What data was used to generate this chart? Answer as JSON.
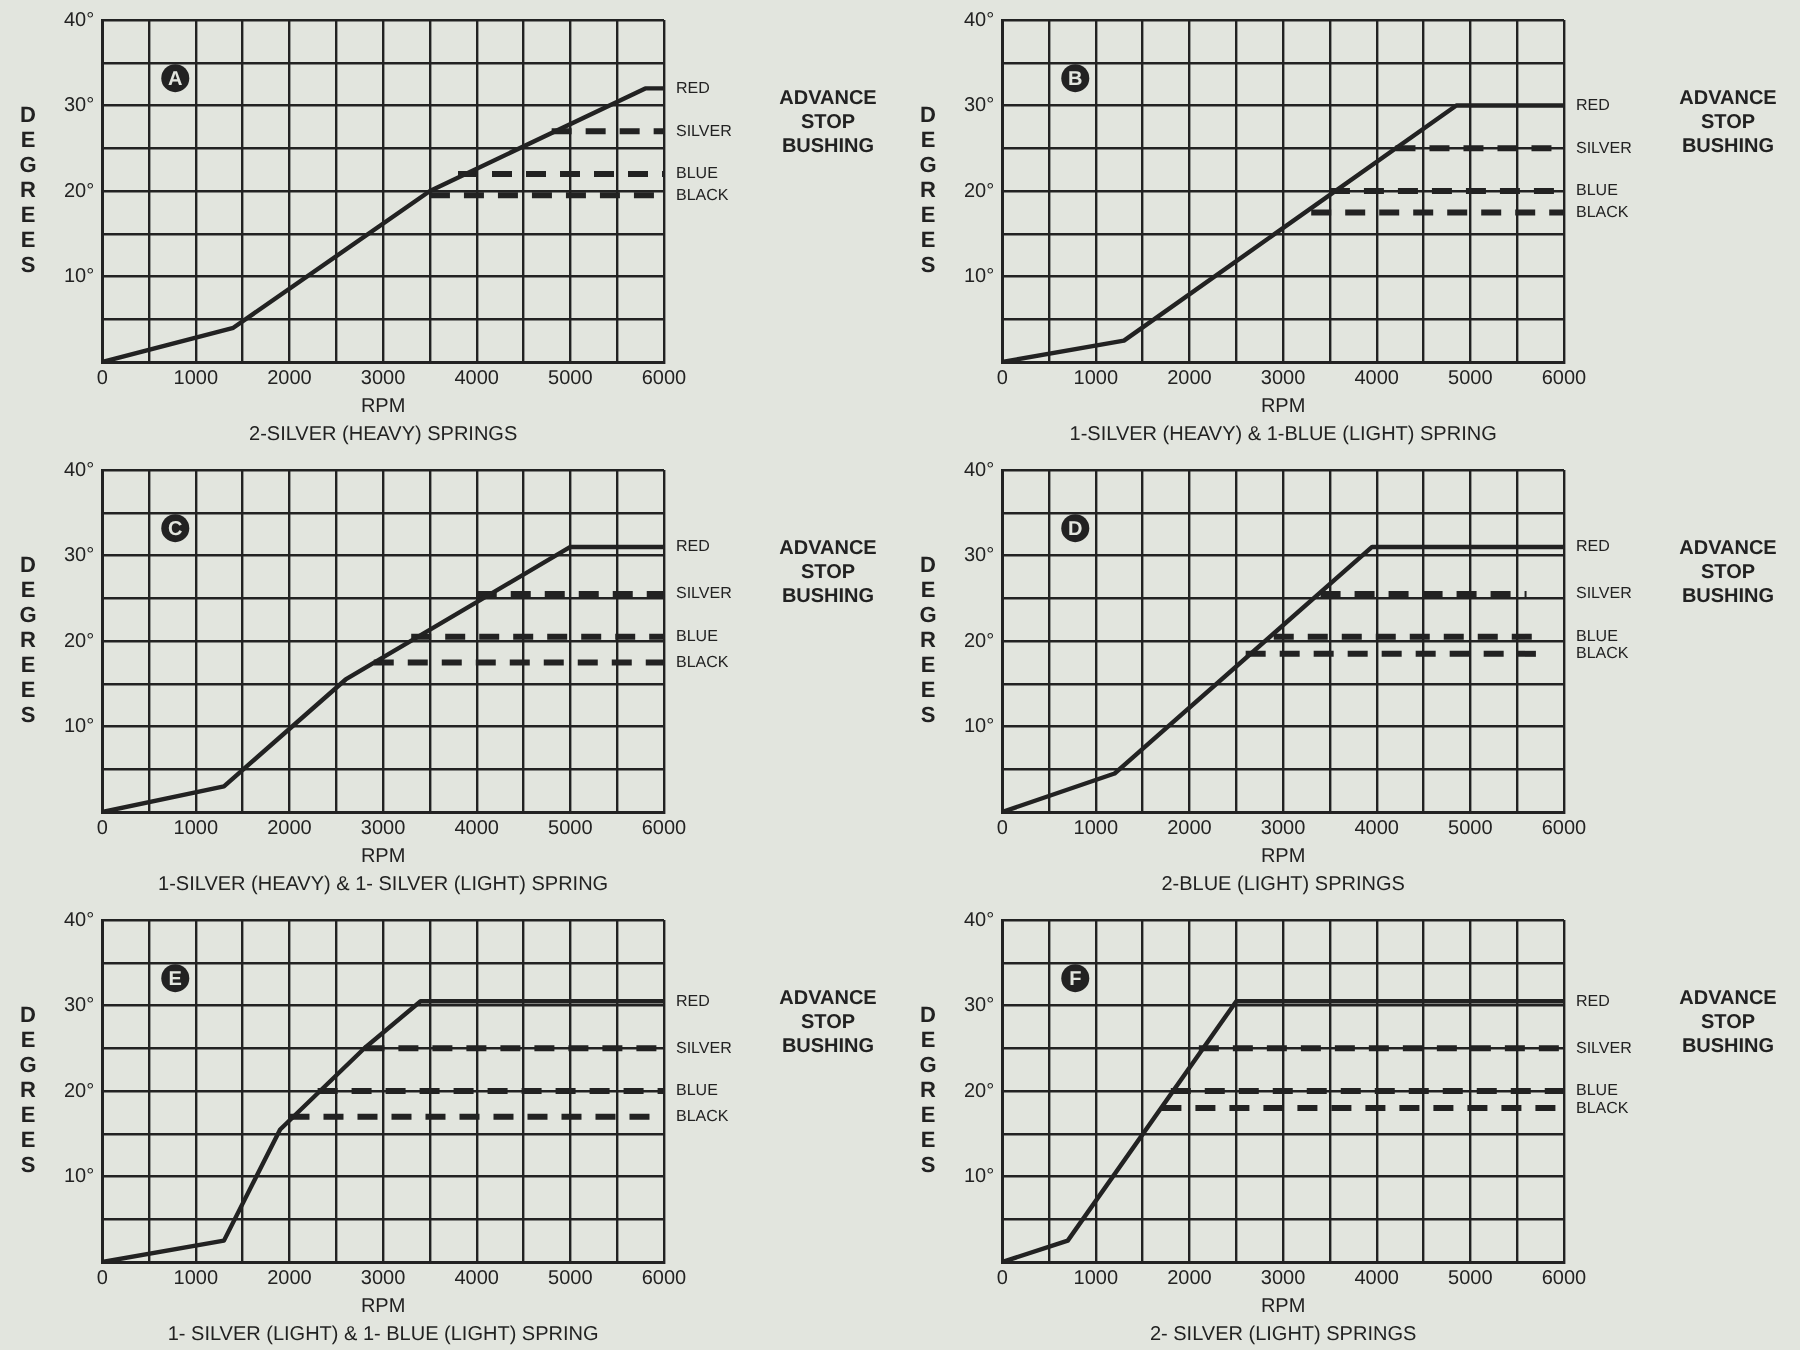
{
  "chart_data": [
    {
      "type": "line",
      "title": "A",
      "xlabel": "RPM",
      "ylabel": "DEGREES",
      "grid": true,
      "marker": "none",
      "xlim": [
        0,
        6000
      ],
      "ylim": [
        0,
        40
      ],
      "xticks": [
        0,
        {
          "value": 500,
          "label": null
        },
        1000,
        {
          "value": 1500,
          "label": null
        },
        2000,
        {
          "value": 2500,
          "label": null
        },
        3000,
        {
          "value": 3500,
          "label": null
        },
        4000,
        {
          "value": 4500,
          "label": null
        },
        5000,
        {
          "value": 5500,
          "label": null
        },
        6000
      ],
      "yticks": [
        {
          "value": 0,
          "label": null
        },
        {
          "value": 5,
          "label": null
        },
        {
          "value": 10,
          "label": "10°"
        },
        {
          "value": 15,
          "label": null
        },
        {
          "value": 20,
          "label": "20°"
        },
        {
          "value": 25,
          "label": null
        },
        {
          "value": 30,
          "label": "30°"
        },
        {
          "value": 35,
          "label": null
        },
        {
          "value": 40,
          "label": "40°"
        }
      ],
      "series": [
        {
          "name": "RED",
          "color": "#222222",
          "line_style": "solid",
          "x": [
            0,
            1400,
            3500,
            5800,
            6000
          ],
          "values": [
            0,
            4,
            20,
            32,
            32
          ]
        },
        {
          "name": "SILVER",
          "color": "#222222",
          "line_style": "dashed",
          "x": [
            4800,
            6000
          ],
          "values": [
            27,
            27
          ]
        },
        {
          "name": "BLUE",
          "color": "#222222",
          "line_style": "dashed",
          "x": [
            3800,
            6000
          ],
          "values": [
            22,
            22
          ]
        },
        {
          "name": "BLACK",
          "color": "#222222",
          "line_style": "dashed",
          "x": [
            3500,
            6000
          ],
          "values": [
            19.5,
            19.5
          ]
        }
      ],
      "annotations": [
        "ADVANCE STOP BUSHING",
        "2-SILVER (HEAVY) SPRINGS"
      ]
    },
    {
      "type": "line",
      "title": "B",
      "xlabel": "RPM",
      "ylabel": "DEGREES",
      "grid": true,
      "marker": "none",
      "xlim": [
        0,
        6000
      ],
      "ylim": [
        0,
        40
      ],
      "xticks": [
        0,
        {
          "value": 500,
          "label": null
        },
        1000,
        {
          "value": 1500,
          "label": null
        },
        2000,
        {
          "value": 2500,
          "label": null
        },
        3000,
        {
          "value": 3500,
          "label": null
        },
        4000,
        {
          "value": 4500,
          "label": null
        },
        5000,
        {
          "value": 5500,
          "label": null
        },
        6000
      ],
      "yticks": [
        {
          "value": 0,
          "label": null
        },
        {
          "value": 5,
          "label": null
        },
        {
          "value": 10,
          "label": "10°"
        },
        {
          "value": 15,
          "label": null
        },
        {
          "value": 20,
          "label": "20°"
        },
        {
          "value": 25,
          "label": null
        },
        {
          "value": 30,
          "label": "30°"
        },
        {
          "value": 35,
          "label": null
        },
        {
          "value": 40,
          "label": "40°"
        }
      ],
      "series": [
        {
          "name": "RED",
          "color": "#222222",
          "line_style": "solid",
          "x": [
            0,
            1300,
            4850,
            6000
          ],
          "values": [
            0,
            2.5,
            30,
            30
          ]
        },
        {
          "name": "SILVER",
          "color": "#222222",
          "line_style": "dashed",
          "x": [
            4200,
            6000
          ],
          "values": [
            25,
            25
          ]
        },
        {
          "name": "BLUE",
          "color": "#222222",
          "line_style": "dashed",
          "x": [
            3500,
            6000
          ],
          "values": [
            20,
            20
          ]
        },
        {
          "name": "BLACK",
          "color": "#222222",
          "line_style": "dashed",
          "x": [
            3300,
            6000
          ],
          "values": [
            17.5,
            17.5
          ]
        }
      ],
      "annotations": [
        "ADVANCE STOP BUSHING",
        "1-SILVER (HEAVY) & 1-BLUE (LIGHT) SPRING"
      ]
    },
    {
      "type": "line",
      "title": "C",
      "xlabel": "RPM",
      "ylabel": "DEGREES",
      "grid": true,
      "marker": "none",
      "xlim": [
        0,
        6000
      ],
      "ylim": [
        0,
        40
      ],
      "xticks": [
        0,
        {
          "value": 500,
          "label": null
        },
        1000,
        {
          "value": 1500,
          "label": null
        },
        2000,
        {
          "value": 2500,
          "label": null
        },
        3000,
        {
          "value": 3500,
          "label": null
        },
        4000,
        {
          "value": 4500,
          "label": null
        },
        5000,
        {
          "value": 5500,
          "label": null
        },
        6000
      ],
      "yticks": [
        {
          "value": 0,
          "label": null
        },
        {
          "value": 5,
          "label": null
        },
        {
          "value": 10,
          "label": "10°"
        },
        {
          "value": 15,
          "label": null
        },
        {
          "value": 20,
          "label": "20°"
        },
        {
          "value": 25,
          "label": null
        },
        {
          "value": 30,
          "label": "30°"
        },
        {
          "value": 35,
          "label": null
        },
        {
          "value": 40,
          "label": "40°"
        }
      ],
      "series": [
        {
          "name": "RED",
          "color": "#222222",
          "line_style": "solid",
          "x": [
            0,
            1300,
            2600,
            5000,
            6000
          ],
          "values": [
            0,
            3,
            15.5,
            31,
            31
          ]
        },
        {
          "name": "SILVER",
          "color": "#222222",
          "line_style": "dashed",
          "x": [
            4000,
            6000
          ],
          "values": [
            25.5,
            25.5
          ]
        },
        {
          "name": "BLUE",
          "color": "#222222",
          "line_style": "dashed",
          "x": [
            3300,
            6000
          ],
          "values": [
            20.5,
            20.5
          ]
        },
        {
          "name": "BLACK",
          "color": "#222222",
          "line_style": "dashed",
          "x": [
            2900,
            6000
          ],
          "values": [
            17.5,
            17.5
          ]
        }
      ],
      "annotations": [
        "ADVANCE STOP BUSHING",
        "1-SILVER (HEAVY) & 1- SILVER (LIGHT) SPRING"
      ]
    },
    {
      "type": "line",
      "title": "D",
      "xlabel": "RPM",
      "ylabel": "DEGREES",
      "grid": true,
      "marker": "none",
      "xlim": [
        0,
        6000
      ],
      "ylim": [
        0,
        40
      ],
      "xticks": [
        0,
        {
          "value": 500,
          "label": null
        },
        1000,
        {
          "value": 1500,
          "label": null
        },
        2000,
        {
          "value": 2500,
          "label": null
        },
        3000,
        {
          "value": 3500,
          "label": null
        },
        4000,
        {
          "value": 4500,
          "label": null
        },
        5000,
        {
          "value": 5500,
          "label": null
        },
        6000
      ],
      "yticks": [
        {
          "value": 0,
          "label": null
        },
        {
          "value": 5,
          "label": null
        },
        {
          "value": 10,
          "label": "10°"
        },
        {
          "value": 15,
          "label": null
        },
        {
          "value": 20,
          "label": "20°"
        },
        {
          "value": 25,
          "label": null
        },
        {
          "value": 30,
          "label": "30°"
        },
        {
          "value": 35,
          "label": null
        },
        {
          "value": 40,
          "label": "40°"
        }
      ],
      "series": [
        {
          "name": "RED",
          "color": "#222222",
          "line_style": "solid",
          "x": [
            0,
            1200,
            3950,
            6000
          ],
          "values": [
            0,
            4.5,
            31,
            31
          ]
        },
        {
          "name": "SILVER",
          "color": "#222222",
          "line_style": "dashed",
          "x": [
            3400,
            5600
          ],
          "values": [
            25.5,
            25.5
          ]
        },
        {
          "name": "BLUE",
          "color": "#222222",
          "line_style": "dashed",
          "x": [
            2900,
            5700
          ],
          "values": [
            20.5,
            20.5
          ]
        },
        {
          "name": "BLACK",
          "color": "#222222",
          "line_style": "dashed",
          "x": [
            2600,
            5700
          ],
          "values": [
            18.5,
            18.5
          ]
        }
      ],
      "annotations": [
        "ADVANCE STOP BUSHING",
        "2-BLUE (LIGHT) SPRINGS"
      ]
    },
    {
      "type": "line",
      "title": "E",
      "xlabel": "RPM",
      "ylabel": "DEGREES",
      "grid": true,
      "marker": "none",
      "xlim": [
        0,
        6000
      ],
      "ylim": [
        0,
        40
      ],
      "xticks": [
        0,
        {
          "value": 500,
          "label": null
        },
        1000,
        {
          "value": 1500,
          "label": null
        },
        2000,
        {
          "value": 2500,
          "label": null
        },
        3000,
        {
          "value": 3500,
          "label": null
        },
        4000,
        {
          "value": 4500,
          "label": null
        },
        5000,
        {
          "value": 5500,
          "label": null
        },
        6000
      ],
      "yticks": [
        {
          "value": 0,
          "label": null
        },
        {
          "value": 5,
          "label": null
        },
        {
          "value": 10,
          "label": "10°"
        },
        {
          "value": 15,
          "label": null
        },
        {
          "value": 20,
          "label": "20°"
        },
        {
          "value": 25,
          "label": null
        },
        {
          "value": 30,
          "label": "30°"
        },
        {
          "value": 35,
          "label": null
        },
        {
          "value": 40,
          "label": "40°"
        }
      ],
      "series": [
        {
          "name": "RED",
          "color": "#222222",
          "line_style": "solid",
          "x": [
            0,
            1300,
            1900,
            2800,
            3400,
            6000
          ],
          "values": [
            0,
            2.5,
            15.5,
            25,
            30.5,
            30.5
          ]
        },
        {
          "name": "SILVER",
          "color": "#222222",
          "line_style": "dashed",
          "x": [
            2800,
            6000
          ],
          "values": [
            25,
            25
          ]
        },
        {
          "name": "BLUE",
          "color": "#222222",
          "line_style": "dashed",
          "x": [
            2300,
            6000
          ],
          "values": [
            20,
            20
          ]
        },
        {
          "name": "BLACK",
          "color": "#222222",
          "line_style": "dashed",
          "x": [
            2000,
            6000
          ],
          "values": [
            17,
            17
          ]
        }
      ],
      "annotations": [
        "ADVANCE STOP BUSHING",
        "1- SILVER (LIGHT) & 1- BLUE (LIGHT) SPRING"
      ]
    },
    {
      "type": "line",
      "title": "F",
      "xlabel": "RPM",
      "ylabel": "DEGREES",
      "grid": true,
      "marker": "none",
      "xlim": [
        0,
        6000
      ],
      "ylim": [
        0,
        40
      ],
      "xticks": [
        0,
        {
          "value": 500,
          "label": null
        },
        1000,
        {
          "value": 1500,
          "label": null
        },
        2000,
        {
          "value": 2500,
          "label": null
        },
        3000,
        {
          "value": 3500,
          "label": null
        },
        4000,
        {
          "value": 4500,
          "label": null
        },
        5000,
        {
          "value": 5500,
          "label": null
        },
        6000
      ],
      "yticks": [
        {
          "value": 0,
          "label": null
        },
        {
          "value": 5,
          "label": null
        },
        {
          "value": 10,
          "label": "10°"
        },
        {
          "value": 15,
          "label": null
        },
        {
          "value": 20,
          "label": "20°"
        },
        {
          "value": 25,
          "label": null
        },
        {
          "value": 30,
          "label": "30°"
        },
        {
          "value": 35,
          "label": null
        },
        {
          "value": 40,
          "label": "40°"
        }
      ],
      "series": [
        {
          "name": "RED",
          "color": "#222222",
          "line_style": "solid",
          "x": [
            0,
            700,
            2500,
            6000
          ],
          "values": [
            0,
            2.5,
            30.5,
            30.5
          ]
        },
        {
          "name": "SILVER",
          "color": "#222222",
          "line_style": "dashed",
          "x": [
            2100,
            6000
          ],
          "values": [
            25,
            25
          ]
        },
        {
          "name": "BLUE",
          "color": "#222222",
          "line_style": "dashed",
          "x": [
            1800,
            6000
          ],
          "values": [
            20,
            20
          ]
        },
        {
          "name": "BLACK",
          "color": "#222222",
          "line_style": "dashed",
          "x": [
            1700,
            6000
          ],
          "values": [
            18,
            18
          ]
        }
      ],
      "annotations": [
        "ADVANCE STOP BUSHING",
        "2- SILVER (LIGHT) SPRINGS"
      ]
    }
  ]
}
